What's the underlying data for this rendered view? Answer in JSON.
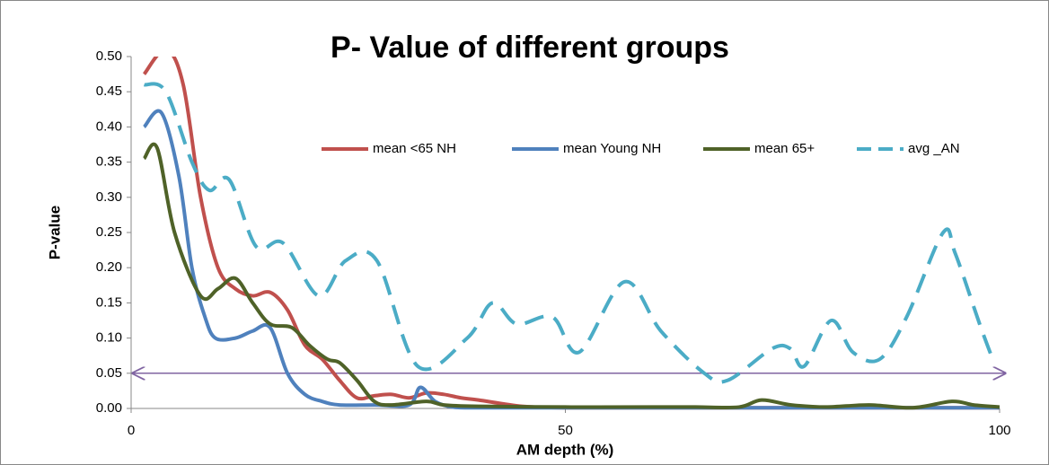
{
  "chart_data": {
    "type": "line",
    "title": "P- Value of different groups",
    "x_label": "AM depth (%)",
    "y_label": "P-value",
    "xlim": [
      0,
      100
    ],
    "xticks": [
      0,
      50,
      100
    ],
    "ylim": [
      0,
      0.5
    ],
    "yticks": [
      {
        "value": 0,
        "label": "0.00"
      },
      {
        "value": 0.05,
        "label": "0.05"
      },
      {
        "value": 0.1,
        "label": "0.10"
      },
      {
        "value": 0.15,
        "label": "0.15"
      },
      {
        "value": 0.2,
        "label": "0.20"
      },
      {
        "value": 0.25,
        "label": "0.25"
      },
      {
        "value": 0.3,
        "label": "0.30"
      },
      {
        "value": 0.35,
        "label": "0.35"
      },
      {
        "value": 0.4,
        "label": "0.40"
      },
      {
        "value": 0.45,
        "label": "0.45"
      },
      {
        "value": 0.5,
        "label": "0.50"
      }
    ],
    "grid": false,
    "legend": "top-right",
    "reference_line": {
      "y": 0.05,
      "color": "#8064a2"
    },
    "series": [
      {
        "name": "mean <65 NH",
        "color": "#c0504d",
        "dash": false,
        "x": [
          1.5,
          4,
          6,
          8,
          10,
          12,
          14,
          16,
          18,
          20,
          22,
          24,
          26,
          28,
          30,
          32,
          34,
          36,
          38,
          40,
          45,
          50,
          60,
          70,
          80,
          90,
          100
        ],
        "values": [
          0.475,
          0.51,
          0.46,
          0.3,
          0.2,
          0.17,
          0.16,
          0.165,
          0.14,
          0.09,
          0.07,
          0.04,
          0.015,
          0.018,
          0.02,
          0.015,
          0.022,
          0.02,
          0.015,
          0.012,
          0.003,
          0.001,
          0.001,
          0.001,
          0.001,
          0.001,
          0.001
        ]
      },
      {
        "name": "mean Young NH",
        "color": "#4f81bd",
        "dash": false,
        "x": [
          1.5,
          3.5,
          5.5,
          7,
          8.5,
          9.7,
          12,
          14,
          16,
          18,
          20,
          22,
          24,
          28,
          32,
          33.3,
          35,
          37,
          40,
          50,
          60,
          70,
          80,
          90,
          100
        ],
        "values": [
          0.4,
          0.42,
          0.33,
          0.2,
          0.13,
          0.1,
          0.1,
          0.11,
          0.115,
          0.05,
          0.02,
          0.01,
          0.005,
          0.005,
          0.005,
          0.03,
          0.01,
          0.002,
          0.001,
          0.001,
          0.001,
          0.001,
          0.001,
          0.001,
          0.001
        ]
      },
      {
        "name": "mean 65+",
        "color": "#4f6228",
        "dash": false,
        "x": [
          1.5,
          3,
          5,
          8,
          10,
          12,
          14,
          16,
          18.5,
          20.5,
          22.6,
          24,
          26,
          28,
          30,
          34,
          36,
          40,
          50,
          60,
          65,
          70,
          72.6,
          76,
          80,
          85,
          90,
          94.5,
          97,
          100
        ],
        "values": [
          0.355,
          0.37,
          0.25,
          0.16,
          0.17,
          0.185,
          0.15,
          0.12,
          0.115,
          0.09,
          0.07,
          0.065,
          0.04,
          0.01,
          0.005,
          0.01,
          0.005,
          0.003,
          0.002,
          0.002,
          0.002,
          0.002,
          0.012,
          0.005,
          0.002,
          0.005,
          0.001,
          0.01,
          0.005,
          0.002
        ]
      },
      {
        "name": "avg _AN",
        "color": "#4bacc6",
        "dash": true,
        "x": [
          1.5,
          4,
          7,
          9,
          11.3,
          14.4,
          17.5,
          21.6,
          24.7,
          28.3,
          33,
          38.7,
          41.6,
          44.4,
          48.5,
          51.6,
          56.8,
          61,
          66,
          68.7,
          73.8,
          75.9,
          77.5,
          80.6,
          83.1,
          86.2,
          89.3,
          93.5,
          94.9,
          97.7,
          99.2
        ],
        "values": [
          0.46,
          0.45,
          0.35,
          0.31,
          0.325,
          0.23,
          0.235,
          0.16,
          0.21,
          0.21,
          0.06,
          0.1,
          0.15,
          0.12,
          0.13,
          0.08,
          0.18,
          0.11,
          0.05,
          0.04,
          0.085,
          0.085,
          0.06,
          0.125,
          0.08,
          0.07,
          0.13,
          0.25,
          0.22,
          0.12,
          0.07
        ]
      }
    ]
  }
}
